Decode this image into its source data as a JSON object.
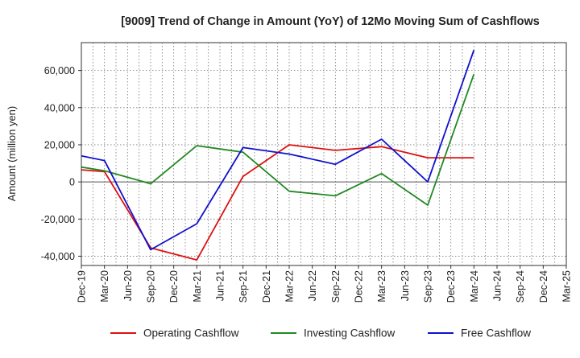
{
  "chart_data": {
    "type": "line",
    "title": "[9009]  Trend of Change in Amount (YoY) of 12Mo Moving Sum of Cashflows",
    "xlabel": "",
    "ylabel": "Amount (million yen)",
    "ylim": [
      -45000,
      75000
    ],
    "yticks": [
      -40000,
      -20000,
      0,
      20000,
      40000,
      60000
    ],
    "ytick_labels": [
      "-40,000",
      "-20,000",
      "0",
      "20,000",
      "40,000",
      "60,000"
    ],
    "categories": [
      "Dec-19",
      "Mar-20",
      "Jun-20",
      "Sep-20",
      "Dec-20",
      "Mar-21",
      "Jun-21",
      "Sep-21",
      "Dec-21",
      "Mar-22",
      "Jun-22",
      "Sep-22",
      "Dec-22",
      "Mar-23",
      "Jun-23",
      "Sep-23",
      "Dec-23",
      "Mar-24",
      "Jun-24",
      "Sep-24",
      "Dec-24",
      "Mar-25"
    ],
    "grid": true,
    "legend_position": "bottom",
    "series": [
      {
        "name": "Operating Cashflow",
        "color": "#dd1111",
        "values": [
          6500,
          5500,
          null,
          -35500,
          null,
          -42000,
          null,
          3000,
          null,
          20000,
          null,
          17000,
          null,
          19000,
          null,
          13000,
          null,
          13000,
          null,
          null,
          null,
          null
        ]
      },
      {
        "name": "Investing Cashflow",
        "color": "#228822",
        "values": [
          8000,
          6000,
          null,
          -1000,
          null,
          19500,
          null,
          16000,
          null,
          -5000,
          null,
          -7500,
          null,
          4500,
          null,
          -12500,
          null,
          58000,
          null,
          null,
          null,
          null
        ]
      },
      {
        "name": "Free Cashflow",
        "color": "#1111cc",
        "values": [
          14000,
          11500,
          null,
          -36500,
          null,
          -22500,
          null,
          18500,
          null,
          15000,
          null,
          9500,
          null,
          23000,
          null,
          0,
          null,
          71000,
          null,
          null,
          null,
          null
        ]
      }
    ]
  }
}
